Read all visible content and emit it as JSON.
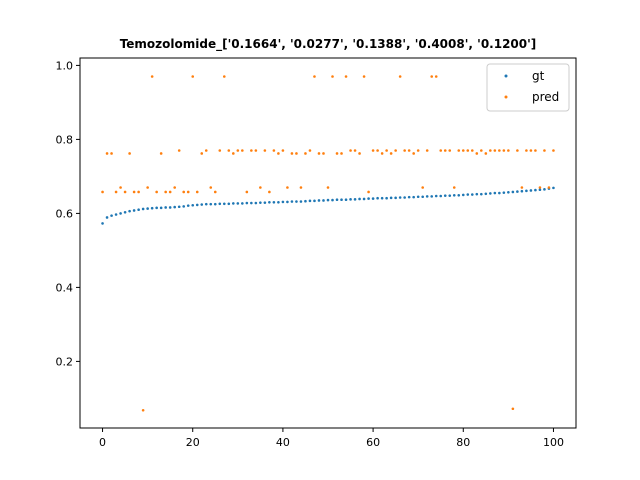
{
  "chart_data": {
    "type": "scatter",
    "title": "Temozolomide_['0.1664', '0.0277', '0.1388', '0.4008', '0.1200']",
    "xlabel": "",
    "ylabel": "",
    "xlim": [
      -5,
      105
    ],
    "ylim": [
      0.02,
      1.02
    ],
    "x_ticks": [
      0,
      20,
      40,
      60,
      80,
      100
    ],
    "y_ticks": [
      0.2,
      0.4,
      0.6,
      0.8,
      1.0
    ],
    "x_tick_labels": [
      "0",
      "20",
      "40",
      "60",
      "80",
      "100"
    ],
    "y_tick_labels": [
      "0.2",
      "0.4",
      "0.6",
      "0.8",
      "1.0"
    ],
    "grid": false,
    "legend_position": "top-right",
    "series": [
      {
        "name": "gt",
        "color": "#1f77b4",
        "points": [
          [
            0,
            0.573
          ],
          [
            1,
            0.589
          ],
          [
            2,
            0.594
          ],
          [
            3,
            0.597
          ],
          [
            4,
            0.6
          ],
          [
            5,
            0.603
          ],
          [
            6,
            0.606
          ],
          [
            7,
            0.608
          ],
          [
            8,
            0.61
          ],
          [
            9,
            0.612
          ],
          [
            10,
            0.613
          ],
          [
            11,
            0.614
          ],
          [
            12,
            0.615
          ],
          [
            13,
            0.615
          ],
          [
            14,
            0.616
          ],
          [
            15,
            0.616
          ],
          [
            16,
            0.617
          ],
          [
            17,
            0.618
          ],
          [
            18,
            0.619
          ],
          [
            19,
            0.621
          ],
          [
            20,
            0.622
          ],
          [
            21,
            0.623
          ],
          [
            22,
            0.624
          ],
          [
            23,
            0.625
          ],
          [
            24,
            0.625
          ],
          [
            25,
            0.625
          ],
          [
            26,
            0.626
          ],
          [
            27,
            0.626
          ],
          [
            28,
            0.626
          ],
          [
            29,
            0.627
          ],
          [
            30,
            0.627
          ],
          [
            31,
            0.627
          ],
          [
            32,
            0.628
          ],
          [
            33,
            0.628
          ],
          [
            34,
            0.628
          ],
          [
            35,
            0.629
          ],
          [
            36,
            0.629
          ],
          [
            37,
            0.63
          ],
          [
            38,
            0.63
          ],
          [
            39,
            0.63
          ],
          [
            40,
            0.631
          ],
          [
            41,
            0.631
          ],
          [
            42,
            0.632
          ],
          [
            43,
            0.632
          ],
          [
            44,
            0.632
          ],
          [
            45,
            0.633
          ],
          [
            46,
            0.634
          ],
          [
            47,
            0.634
          ],
          [
            48,
            0.635
          ],
          [
            49,
            0.635
          ],
          [
            50,
            0.636
          ],
          [
            51,
            0.636
          ],
          [
            52,
            0.637
          ],
          [
            53,
            0.637
          ],
          [
            54,
            0.637
          ],
          [
            55,
            0.638
          ],
          [
            56,
            0.638
          ],
          [
            57,
            0.639
          ],
          [
            58,
            0.639
          ],
          [
            59,
            0.64
          ],
          [
            60,
            0.64
          ],
          [
            61,
            0.641
          ],
          [
            62,
            0.641
          ],
          [
            63,
            0.641
          ],
          [
            64,
            0.642
          ],
          [
            65,
            0.642
          ],
          [
            66,
            0.643
          ],
          [
            67,
            0.643
          ],
          [
            68,
            0.644
          ],
          [
            69,
            0.644
          ],
          [
            70,
            0.645
          ],
          [
            71,
            0.645
          ],
          [
            72,
            0.646
          ],
          [
            73,
            0.646
          ],
          [
            74,
            0.647
          ],
          [
            75,
            0.647
          ],
          [
            76,
            0.648
          ],
          [
            77,
            0.648
          ],
          [
            78,
            0.649
          ],
          [
            79,
            0.649
          ],
          [
            80,
            0.65
          ],
          [
            81,
            0.651
          ],
          [
            82,
            0.651
          ],
          [
            83,
            0.652
          ],
          [
            84,
            0.652
          ],
          [
            85,
            0.653
          ],
          [
            86,
            0.654
          ],
          [
            87,
            0.655
          ],
          [
            88,
            0.655
          ],
          [
            89,
            0.656
          ],
          [
            90,
            0.657
          ],
          [
            91,
            0.658
          ],
          [
            92,
            0.659
          ],
          [
            93,
            0.66
          ],
          [
            94,
            0.661
          ],
          [
            95,
            0.662
          ],
          [
            96,
            0.663
          ],
          [
            97,
            0.664
          ],
          [
            98,
            0.665
          ],
          [
            99,
            0.667
          ],
          [
            100,
            0.669
          ]
        ]
      },
      {
        "name": "pred",
        "color": "#ff7f0e",
        "points": [
          [
            0,
            0.658
          ],
          [
            1,
            0.762
          ],
          [
            2,
            0.762
          ],
          [
            3,
            0.658
          ],
          [
            4,
            0.67
          ],
          [
            5,
            0.658
          ],
          [
            6,
            0.762
          ],
          [
            7,
            0.658
          ],
          [
            8,
            0.658
          ],
          [
            9,
            0.068
          ],
          [
            10,
            0.67
          ],
          [
            11,
            0.97
          ],
          [
            12,
            0.658
          ],
          [
            13,
            0.762
          ],
          [
            14,
            0.658
          ],
          [
            15,
            0.658
          ],
          [
            16,
            0.67
          ],
          [
            17,
            0.77
          ],
          [
            18,
            0.658
          ],
          [
            19,
            0.658
          ],
          [
            20,
            0.97
          ],
          [
            21,
            0.658
          ],
          [
            22,
            0.762
          ],
          [
            23,
            0.77
          ],
          [
            24,
            0.67
          ],
          [
            25,
            0.658
          ],
          [
            26,
            0.77
          ],
          [
            27,
            0.97
          ],
          [
            28,
            0.77
          ],
          [
            29,
            0.762
          ],
          [
            30,
            0.77
          ],
          [
            31,
            0.77
          ],
          [
            32,
            0.658
          ],
          [
            33,
            0.77
          ],
          [
            34,
            0.77
          ],
          [
            35,
            0.67
          ],
          [
            36,
            0.77
          ],
          [
            37,
            0.658
          ],
          [
            38,
            0.77
          ],
          [
            39,
            0.762
          ],
          [
            40,
            0.77
          ],
          [
            41,
            0.67
          ],
          [
            42,
            0.762
          ],
          [
            43,
            0.762
          ],
          [
            44,
            0.67
          ],
          [
            45,
            0.762
          ],
          [
            46,
            0.77
          ],
          [
            47,
            0.97
          ],
          [
            48,
            0.762
          ],
          [
            49,
            0.762
          ],
          [
            50,
            0.67
          ],
          [
            51,
            0.97
          ],
          [
            52,
            0.762
          ],
          [
            53,
            0.762
          ],
          [
            54,
            0.97
          ],
          [
            55,
            0.77
          ],
          [
            56,
            0.77
          ],
          [
            57,
            0.762
          ],
          [
            58,
            0.97
          ],
          [
            59,
            0.658
          ],
          [
            60,
            0.77
          ],
          [
            61,
            0.77
          ],
          [
            62,
            0.762
          ],
          [
            63,
            0.77
          ],
          [
            64,
            0.762
          ],
          [
            65,
            0.77
          ],
          [
            66,
            0.97
          ],
          [
            67,
            0.77
          ],
          [
            68,
            0.77
          ],
          [
            69,
            0.762
          ],
          [
            70,
            0.77
          ],
          [
            71,
            0.67
          ],
          [
            72,
            0.77
          ],
          [
            73,
            0.97
          ],
          [
            74,
            0.97
          ],
          [
            75,
            0.77
          ],
          [
            76,
            0.77
          ],
          [
            77,
            0.77
          ],
          [
            78,
            0.67
          ],
          [
            79,
            0.77
          ],
          [
            80,
            0.77
          ],
          [
            81,
            0.77
          ],
          [
            82,
            0.77
          ],
          [
            83,
            0.762
          ],
          [
            84,
            0.77
          ],
          [
            85,
            0.762
          ],
          [
            86,
            0.77
          ],
          [
            87,
            0.77
          ],
          [
            88,
            0.77
          ],
          [
            89,
            0.77
          ],
          [
            90,
            0.77
          ],
          [
            91,
            0.072
          ],
          [
            92,
            0.77
          ],
          [
            93,
            0.67
          ],
          [
            94,
            0.77
          ],
          [
            95,
            0.77
          ],
          [
            96,
            0.77
          ],
          [
            97,
            0.67
          ],
          [
            98,
            0.77
          ],
          [
            99,
            0.67
          ],
          [
            100,
            0.77
          ]
        ]
      }
    ]
  }
}
